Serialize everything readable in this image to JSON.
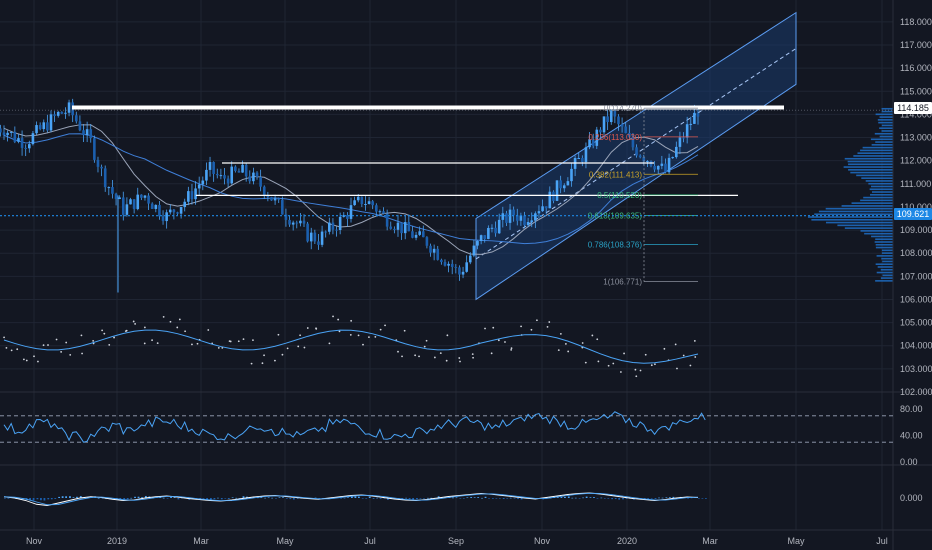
{
  "chart_data": {
    "type": "line",
    "colors": {
      "background": "#131722",
      "candle": "#4aa3f5",
      "price_line": "#8bb8f0",
      "grid": "#1f2533",
      "axis_text": "#b2b5be",
      "resistance": "#ffffff",
      "channel_fill": "#1a3a6b",
      "channel_stroke": "#5b9cf2",
      "ma": "#9aa4b8",
      "indicator": "#4aa3f5",
      "current_tag": "#1e88e5"
    },
    "x_axis": {
      "labels": [
        "Nov",
        "2019",
        "Mar",
        "May",
        "Jul",
        "Sep",
        "Nov",
        "2020",
        "Mar",
        "May",
        "Jul"
      ]
    },
    "main_pane": {
      "ylim": [
        102,
        118.6
      ],
      "tick_labels": [
        "118.000",
        "117.000",
        "116.000",
        "115.000",
        "114.000",
        "113.000",
        "112.000",
        "111.000",
        "110.000",
        "109.000",
        "108.000",
        "107.000",
        "106.000",
        "105.000",
        "104.000",
        "103.000",
        "102.000"
      ],
      "current_price": "114.185",
      "current_price_value": 114.185,
      "poc_price": "109.621",
      "poc_price_value": 109.621,
      "close": [
        113.4,
        113.0,
        112.8,
        113.2,
        113.6,
        114.0,
        114.2,
        113.5,
        112.8,
        111.5,
        110.6,
        109.9,
        110.2,
        110.5,
        110.0,
        109.6,
        110.0,
        110.4,
        111.0,
        111.6,
        111.2,
        111.4,
        111.5,
        111.2,
        110.8,
        110.2,
        109.7,
        109.3,
        108.8,
        108.6,
        109.0,
        109.4,
        109.9,
        110.3,
        110.1,
        109.6,
        109.3,
        109.0,
        108.7,
        108.5,
        108.0,
        107.6,
        107.1,
        107.9,
        108.6,
        109.1,
        109.4,
        109.7,
        109.5,
        109.9,
        110.2,
        110.8,
        111.4,
        112.0,
        112.6,
        113.4,
        114.0,
        113.3,
        112.6,
        112.2,
        111.9,
        111.5,
        112.5,
        113.4,
        114.185
      ],
      "resistance_lines": [
        {
          "price": 114.3,
          "date_from": "2018-12-01",
          "date_to": "2020-02-28"
        },
        {
          "price": 111.9,
          "date_from": "2019-03-15",
          "date_to": "2020-02-15"
        },
        {
          "price": 110.5,
          "date_from": "2019-02-01",
          "date_to": "2020-03-01"
        }
      ],
      "channel": {
        "start_price_low": 106.0,
        "start_price_high": 109.5,
        "end_price_low": 115.3,
        "end_price_high": 118.4
      },
      "fib_levels": [
        {
          "label": "0(114.270)",
          "value": 114.27
        },
        {
          "label": "0.236(113.030)",
          "value": 113.03
        },
        {
          "label": "0.382(111.413)",
          "value": 111.413
        },
        {
          "label": "0.5(110.520)",
          "value": 110.52
        },
        {
          "label": "0.618(109.635)",
          "value": 109.635
        },
        {
          "label": "0.786(108.376)",
          "value": 108.376
        },
        {
          "label": "1(106.771)",
          "value": 106.771
        }
      ]
    },
    "rsi_pane": {
      "ylim": [
        0,
        100
      ],
      "tick_labels": [
        "80.00",
        "40.00",
        "0.00"
      ],
      "upper_band": 70,
      "lower_band": 30,
      "values": [
        52,
        48,
        55,
        60,
        58,
        45,
        40,
        35,
        42,
        50,
        55,
        48,
        52,
        58,
        62,
        60,
        55,
        50,
        45,
        40,
        38,
        42,
        48,
        55,
        52,
        46,
        42,
        40,
        45,
        50,
        58,
        62,
        55,
        48,
        44,
        40,
        38,
        42,
        46,
        50,
        55,
        58,
        62,
        60,
        55,
        52,
        58,
        62,
        68,
        70,
        65,
        60,
        55,
        58,
        62,
        66,
        70,
        64,
        58,
        52,
        48,
        55,
        60,
        65,
        68
      ]
    },
    "macd_pane": {
      "tick_labels": [
        "0.000"
      ],
      "values": [
        0.05,
        0.0,
        -0.1,
        -0.25,
        -0.3,
        -0.2,
        -0.1,
        0.0,
        0.05,
        0.02,
        -0.05,
        -0.1,
        -0.08,
        0.0,
        0.05,
        0.08,
        0.04,
        -0.02,
        -0.06,
        -0.1,
        -0.12,
        -0.08,
        -0.02,
        0.04,
        0.08,
        0.1,
        0.06,
        0.02,
        -0.02,
        -0.05,
        0.0,
        0.05,
        0.1,
        0.12,
        0.08,
        0.02,
        -0.04,
        -0.08,
        -0.1,
        -0.06,
        0.0,
        0.06,
        0.1,
        0.14,
        0.18,
        0.15,
        0.1,
        0.05,
        0.0,
        -0.04,
        0.02,
        0.08,
        0.14,
        0.18,
        0.2,
        0.16,
        0.1,
        0.04,
        -0.02,
        -0.06,
        -0.1,
        -0.06,
        0.0,
        0.04,
        0.02
      ]
    }
  }
}
